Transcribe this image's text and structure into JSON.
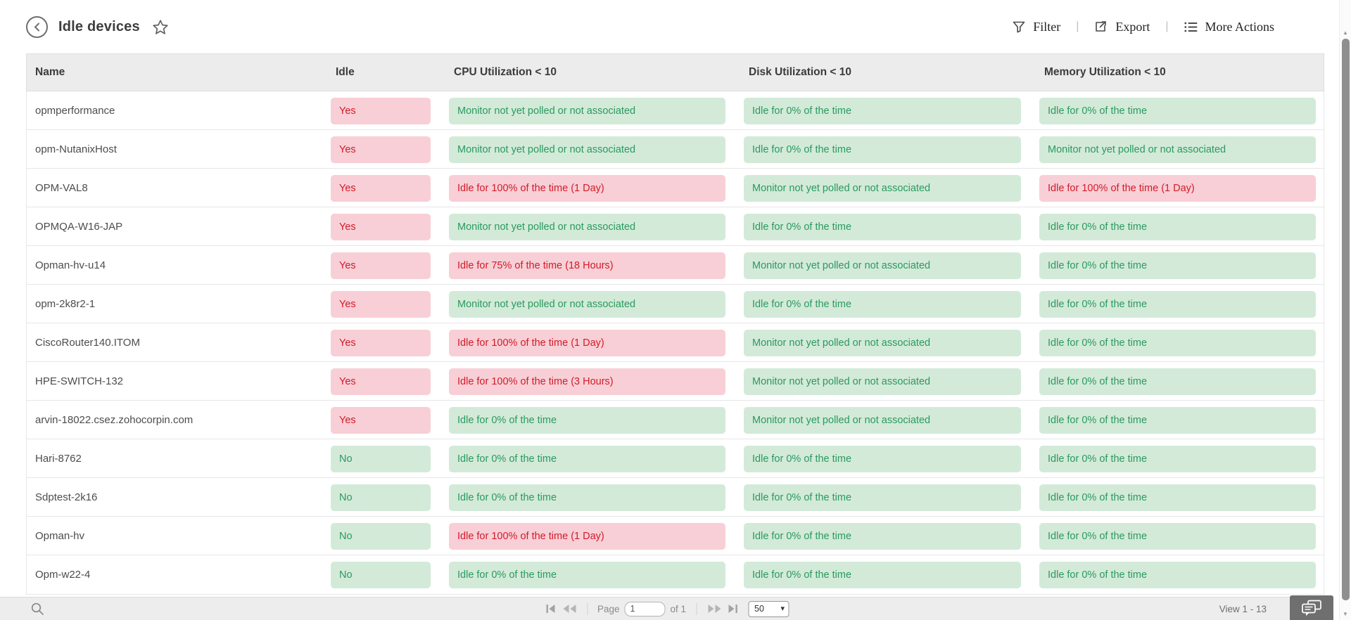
{
  "titlebar": {
    "title": "Idle devices"
  },
  "actions": {
    "filter_label": "Filter",
    "export_label": "Export",
    "more_label": "More Actions",
    "divider": "|"
  },
  "table": {
    "columns": [
      "Name",
      "Idle",
      "CPU Utilization < 10",
      "Disk Utilization < 10",
      "Memory Utilization < 10"
    ],
    "rows": [
      {
        "name": "opmperformance",
        "idle": {
          "text": "Yes",
          "tone": "red"
        },
        "cpu": {
          "text": "Monitor not yet polled or not associated",
          "tone": "green"
        },
        "disk": {
          "text": "Idle for 0% of the time",
          "tone": "green"
        },
        "memory": {
          "text": "Idle for 0% of the time",
          "tone": "green"
        }
      },
      {
        "name": "opm-NutanixHost",
        "idle": {
          "text": "Yes",
          "tone": "red"
        },
        "cpu": {
          "text": "Monitor not yet polled or not associated",
          "tone": "green"
        },
        "disk": {
          "text": "Idle for 0% of the time",
          "tone": "green"
        },
        "memory": {
          "text": "Monitor not yet polled or not associated",
          "tone": "green"
        }
      },
      {
        "name": "OPM-VAL8",
        "idle": {
          "text": "Yes",
          "tone": "red"
        },
        "cpu": {
          "text": "Idle for 100% of the time (1 Day)",
          "tone": "red"
        },
        "disk": {
          "text": "Monitor not yet polled or not associated",
          "tone": "green"
        },
        "memory": {
          "text": "Idle for 100% of the time (1 Day)",
          "tone": "red"
        }
      },
      {
        "name": "OPMQA-W16-JAP",
        "idle": {
          "text": "Yes",
          "tone": "red"
        },
        "cpu": {
          "text": "Monitor not yet polled or not associated",
          "tone": "green"
        },
        "disk": {
          "text": "Idle for 0% of the time",
          "tone": "green"
        },
        "memory": {
          "text": "Idle for 0% of the time",
          "tone": "green"
        }
      },
      {
        "name": "Opman-hv-u14",
        "idle": {
          "text": "Yes",
          "tone": "red"
        },
        "cpu": {
          "text": "Idle for 75% of the time (18 Hours)",
          "tone": "red"
        },
        "disk": {
          "text": "Monitor not yet polled or not associated",
          "tone": "green"
        },
        "memory": {
          "text": "Idle for 0% of the time",
          "tone": "green"
        }
      },
      {
        "name": "opm-2k8r2-1",
        "idle": {
          "text": "Yes",
          "tone": "red"
        },
        "cpu": {
          "text": "Monitor not yet polled or not associated",
          "tone": "green"
        },
        "disk": {
          "text": "Idle for 0% of the time",
          "tone": "green"
        },
        "memory": {
          "text": "Idle for 0% of the time",
          "tone": "green"
        }
      },
      {
        "name": "CiscoRouter140.ITOM",
        "idle": {
          "text": "Yes",
          "tone": "red"
        },
        "cpu": {
          "text": "Idle for 100% of the time (1 Day)",
          "tone": "red"
        },
        "disk": {
          "text": "Monitor not yet polled or not associated",
          "tone": "green"
        },
        "memory": {
          "text": "Idle for 0% of the time",
          "tone": "green"
        }
      },
      {
        "name": "HPE-SWITCH-132",
        "idle": {
          "text": "Yes",
          "tone": "red"
        },
        "cpu": {
          "text": "Idle for 100% of the time (3 Hours)",
          "tone": "red"
        },
        "disk": {
          "text": "Monitor not yet polled or not associated",
          "tone": "green"
        },
        "memory": {
          "text": "Idle for 0% of the time",
          "tone": "green"
        }
      },
      {
        "name": "arvin-18022.csez.zohocorpin.com",
        "idle": {
          "text": "Yes",
          "tone": "red"
        },
        "cpu": {
          "text": "Idle for 0% of the time",
          "tone": "green"
        },
        "disk": {
          "text": "Monitor not yet polled or not associated",
          "tone": "green"
        },
        "memory": {
          "text": "Idle for 0% of the time",
          "tone": "green"
        }
      },
      {
        "name": "Hari-8762",
        "idle": {
          "text": "No",
          "tone": "green"
        },
        "cpu": {
          "text": "Idle for 0% of the time",
          "tone": "green"
        },
        "disk": {
          "text": "Idle for 0% of the time",
          "tone": "green"
        },
        "memory": {
          "text": "Idle for 0% of the time",
          "tone": "green"
        }
      },
      {
        "name": "Sdptest-2k16",
        "idle": {
          "text": "No",
          "tone": "green"
        },
        "cpu": {
          "text": "Idle for 0% of the time",
          "tone": "green"
        },
        "disk": {
          "text": "Idle for 0% of the time",
          "tone": "green"
        },
        "memory": {
          "text": "Idle for 0% of the time",
          "tone": "green"
        }
      },
      {
        "name": "Opman-hv",
        "idle": {
          "text": "No",
          "tone": "green"
        },
        "cpu": {
          "text": "Idle for 100% of the time (1 Day)",
          "tone": "red"
        },
        "disk": {
          "text": "Idle for 0% of the time",
          "tone": "green"
        },
        "memory": {
          "text": "Idle for 0% of the time",
          "tone": "green"
        }
      },
      {
        "name": "Opm-w22-4",
        "idle": {
          "text": "No",
          "tone": "green"
        },
        "cpu": {
          "text": "Idle for 0% of the time",
          "tone": "green"
        },
        "disk": {
          "text": "Idle for 0% of the time",
          "tone": "green"
        },
        "memory": {
          "text": "Idle for 0% of the time",
          "tone": "green"
        }
      }
    ]
  },
  "pagination": {
    "page_label": "Page",
    "page_value": "1",
    "of_label": "of 1",
    "page_size": "50",
    "view_label": "View 1 - 13"
  },
  "colors": {
    "badge_red_bg": "#f8cfd6",
    "badge_red_text": "#d21b29",
    "badge_green_bg": "#d3ead9",
    "badge_green_text": "#2a9a5e",
    "header_bg": "#ececec",
    "footer_bg": "#ededed"
  }
}
